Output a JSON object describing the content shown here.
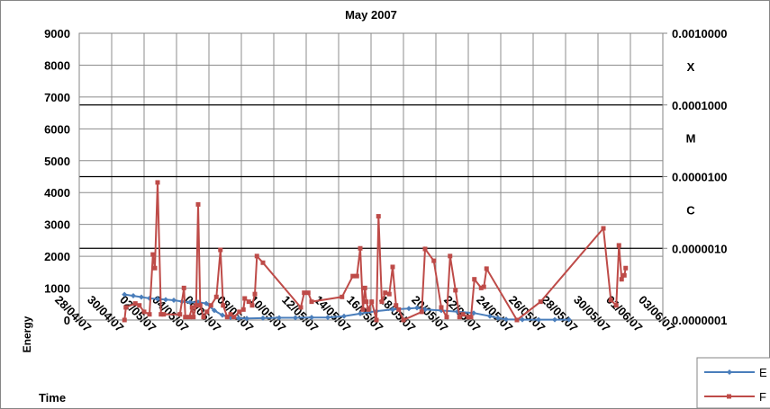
{
  "chart_data": {
    "type": "line",
    "title": "May 2007",
    "ylabel": "Energy",
    "xlabel": "Time",
    "xlim": [
      "2007-04-28",
      "2007-06-03"
    ],
    "xticks": [
      {
        "value": "2007-04-28",
        "label": "28/04/07"
      },
      {
        "value": "2007-04-30",
        "label": "30/04/07"
      },
      {
        "value": "2007-05-02",
        "label": "02/05/07"
      },
      {
        "value": "2007-05-04",
        "label": "04/05/07"
      },
      {
        "value": "2007-05-06",
        "label": "06/05/07"
      },
      {
        "value": "2007-05-08",
        "label": "08/05/07"
      },
      {
        "value": "2007-05-10",
        "label": "10/05/07"
      },
      {
        "value": "2007-05-12",
        "label": "12/05/07"
      },
      {
        "value": "2007-05-14",
        "label": "14/05/07"
      },
      {
        "value": "2007-05-16",
        "label": "16/05/07"
      },
      {
        "value": "2007-05-18",
        "label": "18/05/07"
      },
      {
        "value": "2007-05-20",
        "label": "20/05/07"
      },
      {
        "value": "2007-05-22",
        "label": "22/05/07"
      },
      {
        "value": "2007-05-24",
        "label": "24/05/07"
      },
      {
        "value": "2007-05-26",
        "label": "26/05/07"
      },
      {
        "value": "2007-05-28",
        "label": "28/05/07"
      },
      {
        "value": "2007-05-30",
        "label": "30/05/07"
      },
      {
        "value": "2007-06-01",
        "label": "01/06/07"
      },
      {
        "value": "2007-06-03",
        "label": "03/06/07"
      }
    ],
    "ylim": [
      0,
      9000
    ],
    "yticks": [
      0,
      1000,
      2000,
      3000,
      4000,
      5000,
      6000,
      7000,
      8000,
      9000
    ],
    "y2lim": [
      1e-07,
      0.001
    ],
    "y2scale": "log",
    "y2ticks": [
      {
        "value": 1e-07,
        "label": "0.0000001"
      },
      {
        "value": 1e-06,
        "label": "0.0000010"
      },
      {
        "value": 1e-05,
        "label": "0.0000100"
      },
      {
        "value": 0.0001,
        "label": "0.0001000"
      },
      {
        "value": 0.001,
        "label": "0.0010000"
      }
    ],
    "thresholds": [
      {
        "label": "C",
        "value": 1e-06
      },
      {
        "label": "M",
        "value": 1e-05
      },
      {
        "label": "X",
        "value": 0.0001
      }
    ],
    "grid": true,
    "legend": "bottom-right",
    "series": [
      {
        "name": "E",
        "color": "#4a7ebb",
        "axis": "y",
        "x": [
          "2007-04-30T19:00",
          "2007-05-01T08:00",
          "2007-05-01T20:00",
          "2007-05-02T08:00",
          "2007-05-02T20:00",
          "2007-05-03T08:00",
          "2007-05-03T20:00",
          "2007-05-04T08:00",
          "2007-05-04T20:00",
          "2007-05-05T08:00",
          "2007-05-05T20:00",
          "2007-05-06T08:00",
          "2007-05-06T20:00",
          "2007-05-07T08:00",
          "2007-05-07T20:00",
          "2007-05-08T08:00",
          "2007-05-09T08:00",
          "2007-05-10T08:00",
          "2007-05-11T08:00",
          "2007-05-12T08:00",
          "2007-05-13T08:00",
          "2007-05-14T08:00",
          "2007-05-15T08:00",
          "2007-05-16T08:00",
          "2007-05-17T08:00",
          "2007-05-18T08:00",
          "2007-05-18T20:00",
          "2007-05-19T08:00",
          "2007-05-20T08:00",
          "2007-05-21T08:00",
          "2007-05-22T08:00",
          "2007-05-23T08:00",
          "2007-05-23T20:00",
          "2007-05-24T08:00",
          "2007-05-25T08:00",
          "2007-05-26T08:00",
          "2007-05-27T08:00",
          "2007-05-28T05:00"
        ],
        "values": [
          800,
          760,
          720,
          680,
          660,
          640,
          620,
          580,
          560,
          560,
          520,
          300,
          150,
          80,
          60,
          50,
          60,
          70,
          70,
          80,
          80,
          120,
          200,
          280,
          330,
          360,
          380,
          330,
          300,
          260,
          220,
          120,
          60,
          20,
          10,
          10,
          10,
          10
        ]
      },
      {
        "name": "F",
        "color": "#be4b48",
        "axis": "y2",
        "x": [
          "2007-04-30T19:00",
          "2007-04-30T21:00",
          "2007-05-01T11:00",
          "2007-05-01T17:00",
          "2007-05-02T00:00",
          "2007-05-02T08:00",
          "2007-05-02T13:00",
          "2007-05-02T16:00",
          "2007-05-02T20:00",
          "2007-05-03T01:00",
          "2007-05-03T05:00",
          "2007-05-04T05:00",
          "2007-05-04T11:00",
          "2007-05-04T13:00",
          "2007-05-04T19:00",
          "2007-05-04T23:00",
          "2007-05-05T01:00",
          "2007-05-05T05:00",
          "2007-05-05T08:00",
          "2007-05-05T11:00",
          "2007-05-05T16:00",
          "2007-05-05T21:00",
          "2007-05-06T03:00",
          "2007-05-06T11:00",
          "2007-05-06T17:00",
          "2007-05-06T21:00",
          "2007-05-07T03:00",
          "2007-05-07T08:00",
          "2007-05-07T13:00",
          "2007-05-07T21:00",
          "2007-05-08T03:00",
          "2007-05-08T05:00",
          "2007-05-08T11:00",
          "2007-05-08T16:00",
          "2007-05-08T20:00",
          "2007-05-08T23:00",
          "2007-05-09T08:00",
          "2007-05-11T16:00",
          "2007-05-11T21:00",
          "2007-05-12T03:00",
          "2007-05-12T08:00",
          "2007-05-14T05:00",
          "2007-05-14T21:00",
          "2007-05-15T03:00",
          "2007-05-15T08:00",
          "2007-05-15T12:00",
          "2007-05-15T15:00",
          "2007-05-15T17:00",
          "2007-05-15T20:00",
          "2007-05-16T01:00",
          "2007-05-16T08:00",
          "2007-05-16T11:00",
          "2007-05-16T16:00",
          "2007-05-16T21:00",
          "2007-05-17T03:00",
          "2007-05-17T08:00",
          "2007-05-17T13:00",
          "2007-05-17T17:00",
          "2007-05-18T00:00",
          "2007-05-19T03:00",
          "2007-05-19T08:00",
          "2007-05-19T21:00",
          "2007-05-20T08:00",
          "2007-05-20T16:00",
          "2007-05-20T21:00",
          "2007-05-21T05:00",
          "2007-05-21T11:00",
          "2007-05-21T16:00",
          "2007-05-22T00:00",
          "2007-05-22T04:00",
          "2007-05-22T09:00",
          "2007-05-22T19:00",
          "2007-05-22T23:00",
          "2007-05-23T03:00",
          "2007-05-25T00:00",
          "2007-05-26T11:00",
          "2007-05-30T08:00",
          "2007-05-30T19:00",
          "2007-05-31T03:00",
          "2007-05-31T07:00",
          "2007-05-31T11:00",
          "2007-05-31T15:00",
          "2007-05-31T17:00"
        ],
        "values": [
          1e-07,
          1.5e-07,
          1.7e-07,
          1.6e-07,
          1.3e-07,
          1.2e-07,
          8.2e-07,
          5.3e-07,
          8.3e-06,
          1.2e-07,
          1.2e-07,
          1.2e-07,
          2.8e-07,
          1.1e-07,
          1.1e-07,
          1.5e-07,
          1.1e-07,
          1.6e-07,
          4.1e-06,
          1.6e-07,
          1.1e-07,
          1.3e-07,
          1.6e-07,
          2.1e-07,
          9.5e-07,
          1.6e-07,
          1.1e-07,
          1.2e-07,
          1.1e-07,
          1.3e-07,
          1.4e-07,
          2e-07,
          1.8e-07,
          1.6e-07,
          2.3e-07,
          7.8e-07,
          6.3e-07,
          1.5e-07,
          2.4e-07,
          2.4e-07,
          1.8e-07,
          2.1e-07,
          4.1e-07,
          4.1e-07,
          1e-06,
          1.4e-07,
          2.8e-07,
          1.8e-07,
          1.4e-07,
          1.8e-07,
          1e-07,
          2.8e-06,
          1.8e-07,
          2.4e-07,
          2.3e-07,
          5.5e-07,
          1.6e-07,
          1.4e-07,
          1e-07,
          1.3e-07,
          9.8e-07,
          6.7e-07,
          1.5e-07,
          1.1e-07,
          7.8e-07,
          2.6e-07,
          1.1e-07,
          1.2e-07,
          1.1e-07,
          1.1e-07,
          3.7e-07,
          2.8e-07,
          2.9e-07,
          5.2e-07,
          1e-07,
          1.8e-07,
          1.9e-06,
          1.9e-07,
          1.6e-07,
          1.1e-06,
          3.7e-07,
          4.2e-07,
          5.3e-07
        ]
      }
    ]
  }
}
